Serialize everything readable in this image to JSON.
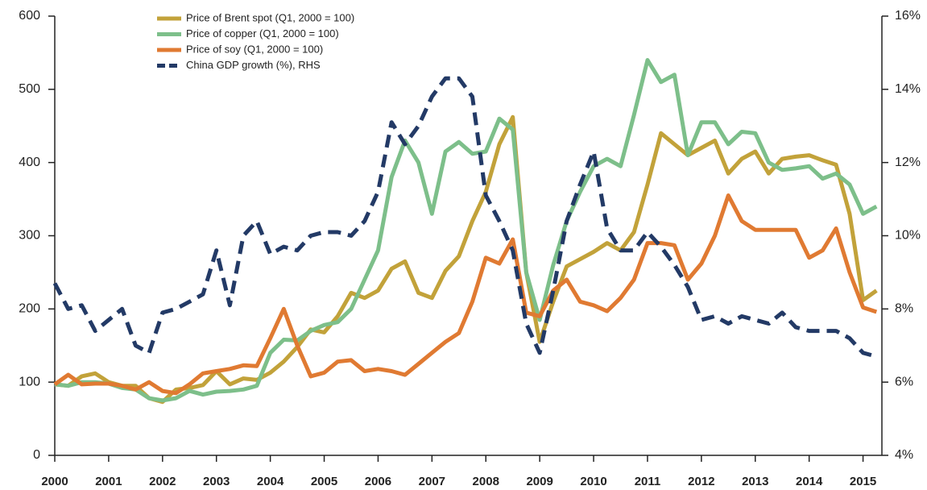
{
  "chart_data": {
    "type": "line",
    "x": [
      2000,
      2000.25,
      2000.5,
      2000.75,
      2001,
      2001.25,
      2001.5,
      2001.75,
      2002,
      2002.25,
      2002.5,
      2002.75,
      2003,
      2003.25,
      2003.5,
      2003.75,
      2004,
      2004.25,
      2004.5,
      2004.75,
      2005,
      2005.25,
      2005.5,
      2005.75,
      2006,
      2006.25,
      2006.5,
      2006.75,
      2007,
      2007.25,
      2007.5,
      2007.75,
      2008,
      2008.25,
      2008.5,
      2008.75,
      2009,
      2009.25,
      2009.5,
      2009.75,
      2010,
      2010.25,
      2010.5,
      2010.75,
      2011,
      2011.25,
      2011.5,
      2011.75,
      2012,
      2012.25,
      2012.5,
      2012.75,
      2013,
      2013.25,
      2013.5,
      2013.75,
      2014,
      2014.25,
      2014.5,
      2014.75,
      2015,
      2015.25
    ],
    "series": [
      {
        "name": "Price of Brent spot (Q1, 2000 = 100)",
        "color": "#c2a23a",
        "values": [
          97,
          95,
          108,
          112,
          100,
          95,
          95,
          78,
          73,
          90,
          92,
          96,
          115,
          97,
          105,
          103,
          113,
          128,
          148,
          172,
          168,
          190,
          222,
          215,
          225,
          255,
          265,
          222,
          215,
          252,
          272,
          320,
          360,
          425,
          462,
          250,
          155,
          210,
          258,
          268,
          278,
          290,
          280,
          305,
          370,
          440,
          425,
          410,
          420,
          430,
          385,
          405,
          415,
          385,
          405,
          408,
          410,
          403,
          397,
          330,
          212,
          225
        ]
      },
      {
        "name": "Price of copper (Q1, 2000 = 100)",
        "color": "#7dbf8a",
        "values": [
          97,
          95,
          100,
          100,
          98,
          92,
          90,
          78,
          75,
          78,
          88,
          83,
          87,
          88,
          90,
          95,
          140,
          158,
          157,
          170,
          178,
          182,
          200,
          240,
          280,
          380,
          430,
          400,
          330,
          415,
          428,
          412,
          415,
          460,
          445,
          250,
          185,
          260,
          320,
          360,
          395,
          405,
          395,
          465,
          540,
          510,
          520,
          410,
          455,
          455,
          425,
          442,
          440,
          400,
          390,
          392,
          395,
          378,
          385,
          370,
          330,
          340
        ]
      },
      {
        "name": "Price of soy (Q1, 2000 = 100)",
        "color": "#e07a32",
        "values": [
          97,
          110,
          97,
          98,
          98,
          95,
          90,
          100,
          88,
          85,
          97,
          112,
          115,
          118,
          123,
          122,
          160,
          200,
          150,
          108,
          113,
          128,
          130,
          115,
          118,
          115,
          110,
          125,
          140,
          155,
          167,
          210,
          270,
          262,
          295,
          195,
          190,
          225,
          240,
          210,
          205,
          197,
          215,
          240,
          290,
          290,
          287,
          240,
          262,
          300,
          355,
          320,
          308,
          308,
          308,
          308,
          270,
          280,
          310,
          250,
          202,
          196
        ]
      },
      {
        "name": "China GDP growth (%), RHS",
        "color": "#233a66",
        "axis": "y2",
        "dash": true,
        "values": [
          8.7,
          8.0,
          8.1,
          7.4,
          7.7,
          8.0,
          7.0,
          6.8,
          7.9,
          8.0,
          8.2,
          8.4,
          9.6,
          8.1,
          10.0,
          10.4,
          9.5,
          9.7,
          9.6,
          10.0,
          10.1,
          10.1,
          10.0,
          10.4,
          11.2,
          13.1,
          12.5,
          13.0,
          13.8,
          14.3,
          14.3,
          13.8,
          11.1,
          10.4,
          9.6,
          7.6,
          6.8,
          8.5,
          10.4,
          11.4,
          12.3,
          10.2,
          9.6,
          9.6,
          10.1,
          9.7,
          9.2,
          8.6,
          7.7,
          7.8,
          7.6,
          7.8,
          7.7,
          7.6,
          7.9,
          7.5,
          7.4,
          7.4,
          7.4,
          7.2,
          6.8,
          6.7
        ]
      }
    ],
    "xlim": [
      2000,
      2015.35
    ],
    "xticks": [
      2000,
      2001,
      2002,
      2003,
      2004,
      2005,
      2006,
      2007,
      2008,
      2009,
      2010,
      2011,
      2012,
      2013,
      2014,
      2015
    ],
    "ylim": [
      0,
      600
    ],
    "yticks": [
      0,
      100,
      200,
      300,
      400,
      500,
      600
    ],
    "y2lim": [
      4,
      16
    ],
    "y2ticks": [
      {
        "value": 4,
        "label": "4%"
      },
      {
        "value": 6,
        "label": "6%"
      },
      {
        "value": 8,
        "label": "8%"
      },
      {
        "value": 10,
        "label": "10%"
      },
      {
        "value": 12,
        "label": "12%"
      },
      {
        "value": 14,
        "label": "14%"
      },
      {
        "value": 16,
        "label": "16%"
      }
    ]
  }
}
